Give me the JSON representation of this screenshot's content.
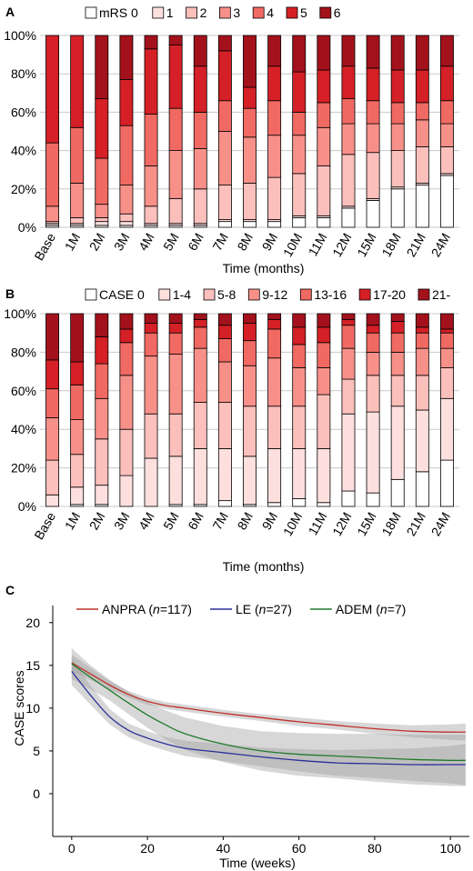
{
  "panels": {
    "a": {
      "letter": "A"
    },
    "b": {
      "letter": "B"
    },
    "c": {
      "letter": "C"
    }
  },
  "chart_data": [
    {
      "type": "bar",
      "stacked": true,
      "title": "",
      "xlabel": "Time (months)",
      "ylabel": "",
      "ylim": [
        0,
        100
      ],
      "yticks": [
        "0%",
        "20%",
        "40%",
        "60%",
        "80%",
        "100%"
      ],
      "categories": [
        "Base",
        "1M",
        "2M",
        "3M",
        "4M",
        "5M",
        "6M",
        "7M",
        "8M",
        "9M",
        "10M",
        "11M",
        "12M",
        "15M",
        "18M",
        "21M",
        "24M"
      ],
      "legend_placement": "top",
      "series": [
        {
          "name": "mRS 0",
          "color": "#ffffff",
          "values": [
            1,
            1,
            1,
            1,
            1,
            1,
            1,
            3,
            3,
            3,
            5,
            5,
            10,
            14,
            20,
            22,
            27
          ]
        },
        {
          "name": "1",
          "color": "#fde0de",
          "values": [
            1,
            1,
            2,
            2,
            1,
            1,
            1,
            1,
            1,
            1,
            1,
            1,
            1,
            1,
            1,
            1,
            1
          ]
        },
        {
          "name": "2",
          "color": "#fbc0bc",
          "values": [
            1,
            3,
            2,
            4,
            9,
            13,
            18,
            18,
            19,
            22,
            22,
            26,
            27,
            24,
            19,
            19,
            14
          ]
        },
        {
          "name": "3",
          "color": "#f8908a",
          "values": [
            8,
            18,
            7,
            15,
            21,
            25,
            21,
            28,
            24,
            22,
            20,
            20,
            16,
            15,
            14,
            14,
            12
          ]
        },
        {
          "name": "4",
          "color": "#f06a63",
          "values": [
            33,
            29,
            24,
            31,
            27,
            22,
            19,
            16,
            15,
            18,
            12,
            13,
            13,
            12,
            11,
            9,
            12
          ]
        },
        {
          "name": "5",
          "color": "#d42026",
          "values": [
            56,
            48,
            31,
            24,
            34,
            33,
            24,
            26,
            11,
            18,
            21,
            17,
            17,
            17,
            17,
            17,
            18
          ]
        },
        {
          "name": "6",
          "color": "#a3121c",
          "values": [
            0,
            0,
            33,
            23,
            7,
            5,
            16,
            8,
            27,
            16,
            19,
            18,
            16,
            17,
            18,
            18,
            16
          ]
        }
      ]
    },
    {
      "type": "bar",
      "stacked": true,
      "title": "",
      "xlabel": "Time (months)",
      "ylabel": "",
      "ylim": [
        0,
        100
      ],
      "yticks": [
        "0%",
        "20%",
        "40%",
        "60%",
        "80%",
        "100%"
      ],
      "categories": [
        "Base",
        "1M",
        "2M",
        "3M",
        "4M",
        "5M",
        "6M",
        "7M",
        "8M",
        "9M",
        "10M",
        "11M",
        "12M",
        "15M",
        "18M",
        "21M",
        "24M"
      ],
      "legend_placement": "top",
      "series": [
        {
          "name": "CASE 0",
          "color": "#ffffff",
          "values": [
            0,
            1,
            1,
            0,
            0,
            1,
            1,
            3,
            1,
            2,
            4,
            2,
            8,
            7,
            14,
            18,
            24
          ]
        },
        {
          "name": "1-4",
          "color": "#fde0de",
          "values": [
            6,
            9,
            10,
            16,
            25,
            25,
            29,
            27,
            25,
            28,
            26,
            28,
            40,
            42,
            38,
            32,
            32
          ]
        },
        {
          "name": "5-8",
          "color": "#fbc0bc",
          "values": [
            18,
            17,
            24,
            24,
            23,
            22,
            24,
            24,
            26,
            22,
            22,
            28,
            18,
            19,
            16,
            18,
            16
          ]
        },
        {
          "name": "9-12",
          "color": "#f8908a",
          "values": [
            22,
            18,
            21,
            28,
            30,
            31,
            28,
            21,
            21,
            25,
            20,
            14,
            16,
            12,
            12,
            14,
            10
          ]
        },
        {
          "name": "13-16",
          "color": "#f06a63",
          "values": [
            15,
            18,
            18,
            17,
            12,
            11,
            11,
            12,
            13,
            15,
            12,
            13,
            12,
            10,
            10,
            8,
            8
          ]
        },
        {
          "name": "17-20",
          "color": "#d42026",
          "values": [
            15,
            12,
            14,
            7,
            5,
            5,
            4,
            7,
            9,
            5,
            9,
            8,
            3,
            4,
            6,
            3,
            2
          ]
        },
        {
          "name": "21-",
          "color": "#a3121c",
          "values": [
            24,
            25,
            12,
            8,
            5,
            5,
            3,
            6,
            5,
            3,
            7,
            7,
            3,
            6,
            4,
            7,
            8
          ]
        }
      ]
    },
    {
      "type": "line",
      "title": "",
      "xlabel": "Time (weeks)",
      "ylabel": "CASE scores",
      "xlim": [
        -5,
        105
      ],
      "ylim": [
        -5,
        22
      ],
      "xticks": [
        0,
        20,
        40,
        60,
        80,
        100
      ],
      "yticks": [
        0,
        5,
        10,
        15,
        20
      ],
      "grid": false,
      "legend_placement": "top",
      "series": [
        {
          "name": "ANPRA",
          "n": "117",
          "color": "#c0302a",
          "x": [
            0,
            5,
            10,
            15,
            20,
            25,
            30,
            40,
            50,
            60,
            70,
            80,
            90,
            100,
            104
          ],
          "y": [
            15.3,
            14.0,
            12.7,
            11.6,
            10.8,
            10.3,
            10.0,
            9.4,
            8.9,
            8.4,
            8.0,
            7.6,
            7.3,
            7.2,
            7.2
          ],
          "band": [
            1.0,
            0.7,
            0.5,
            0.4,
            0.4,
            0.4,
            0.4,
            0.4,
            0.4,
            0.5,
            0.5,
            0.6,
            0.7,
            0.9,
            1.0
          ]
        },
        {
          "name": "LE",
          "n": "27",
          "color": "#2a2f9a",
          "x": [
            0,
            5,
            10,
            15,
            20,
            25,
            30,
            40,
            50,
            60,
            70,
            80,
            90,
            100,
            104
          ],
          "y": [
            14.3,
            11.5,
            9.0,
            7.4,
            6.5,
            5.8,
            5.3,
            4.8,
            4.3,
            3.9,
            3.6,
            3.5,
            3.4,
            3.4,
            3.4
          ],
          "band": [
            1.6,
            1.1,
            0.9,
            0.8,
            0.8,
            0.8,
            0.9,
            1.0,
            1.1,
            1.3,
            1.5,
            1.7,
            1.9,
            2.2,
            2.4
          ]
        },
        {
          "name": "ADEM",
          "n": "7",
          "color": "#1f7a2a",
          "x": [
            0,
            5,
            10,
            15,
            20,
            25,
            30,
            40,
            50,
            60,
            70,
            80,
            90,
            100,
            104
          ],
          "y": [
            15.2,
            13.6,
            12.1,
            10.6,
            9.2,
            8.0,
            7.0,
            5.8,
            5.0,
            4.6,
            4.4,
            4.2,
            4.0,
            3.9,
            3.9
          ],
          "band": [
            1.8,
            1.4,
            1.2,
            1.3,
            1.5,
            1.7,
            1.9,
            2.1,
            2.3,
            2.5,
            2.6,
            2.8,
            2.9,
            3.0,
            3.0
          ]
        }
      ]
    }
  ]
}
